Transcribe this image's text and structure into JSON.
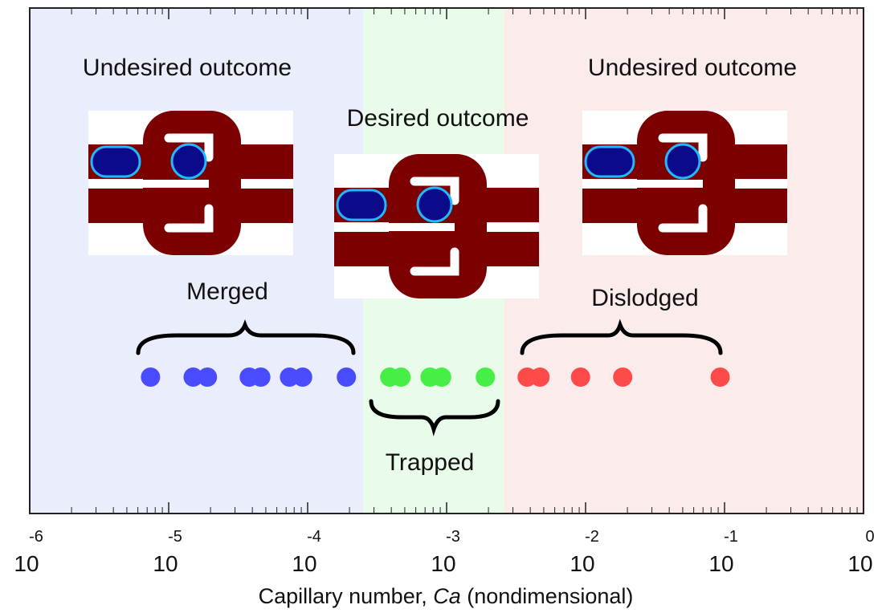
{
  "chart_data": {
    "type": "scatter",
    "xlabel": {
      "text": "Capillary number, ",
      "variable": "Ca",
      "unit": " (nondimensional)"
    },
    "xscale": "log",
    "xlim": [
      1e-06,
      1
    ],
    "xticks": [
      {
        "value": 1e-06,
        "label": "10",
        "exponent": "-6"
      },
      {
        "value": 1e-05,
        "label": "10",
        "exponent": "-5"
      },
      {
        "value": 0.0001,
        "label": "10",
        "exponent": "-4"
      },
      {
        "value": 0.001,
        "label": "10",
        "exponent": "-3"
      },
      {
        "value": 0.01,
        "label": "10",
        "exponent": "-2"
      },
      {
        "value": 0.1,
        "label": "10",
        "exponent": "-1"
      },
      {
        "value": 1,
        "label": "10",
        "exponent": "0"
      }
    ],
    "regions": [
      {
        "start": 1e-06,
        "end": 0.00025,
        "color": "#eaedfb"
      },
      {
        "start": 0.00025,
        "end": 0.0026,
        "color": "#e9fbe9"
      },
      {
        "start": 0.0026,
        "end": 1,
        "color": "#fbeceb"
      }
    ],
    "series": [
      {
        "color": "#4a4cff",
        "x": [
          7.4e-06,
          1.5e-05,
          1.9e-05,
          3.8e-05,
          4.6e-05,
          7.4e-05,
          9.2e-05,
          0.00019
        ]
      },
      {
        "color": "#46ee46",
        "x": [
          0.00039,
          0.00047,
          0.00076,
          0.00092,
          0.0019
        ]
      },
      {
        "color": "#ff4a4a",
        "x": [
          0.0038,
          0.0047,
          0.0092,
          0.0185,
          0.093
        ]
      }
    ],
    "annotations": [
      {
        "text": "Undesired outcome"
      },
      {
        "text": "Desired outcome"
      },
      {
        "text": "Undesired outcome"
      },
      {
        "text": "Merged"
      },
      {
        "text": "Trapped"
      },
      {
        "text": "Dislodged"
      }
    ]
  }
}
